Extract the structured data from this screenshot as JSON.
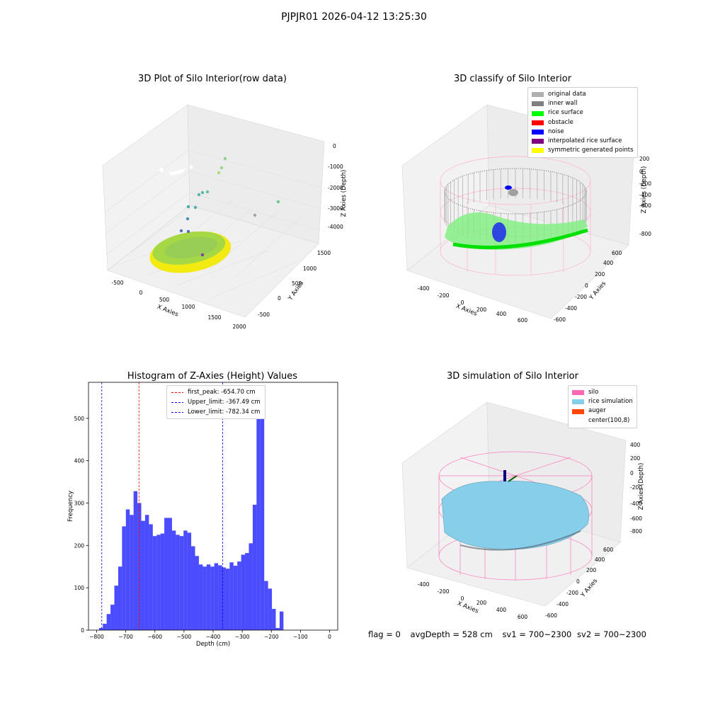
{
  "suptitle": "PJPJR01 2026-04-12 13:25:30",
  "panels": {
    "raw": {
      "title": "3D Plot of Silo Interior(row data)",
      "xlabel": "X Axies",
      "ylabel": "Y Axies",
      "zlabel": "Z Axies (Depth)",
      "xticks": [
        "-500",
        "0",
        "500",
        "1000",
        "1500",
        "2000"
      ],
      "yticks": [
        "-500",
        "0",
        "500",
        "1000",
        "1500"
      ],
      "zticks": [
        "0",
        "-1000",
        "-2000",
        "-3000",
        "-4000"
      ]
    },
    "classify": {
      "title": "3D classify of Silo Interior",
      "xlabel": "X Axies",
      "ylabel": "Y Axies",
      "zlabel": "Z Axies (Depth)",
      "xticks": [
        "-400",
        "-200",
        "0",
        "200",
        "400",
        "600"
      ],
      "yticks": [
        "-600",
        "-400",
        "-200",
        "0",
        "200",
        "400",
        "600"
      ],
      "zticks": [
        "200",
        "0",
        "-200",
        "-400",
        "-600",
        "-800"
      ],
      "legend": [
        {
          "label": "original data",
          "color": "#b0b0b0"
        },
        {
          "label": "inner wall",
          "color": "#808080"
        },
        {
          "label": "rice surface",
          "color": "#00ff00"
        },
        {
          "label": "obstacle",
          "color": "#ff0000"
        },
        {
          "label": "noise",
          "color": "#0000ff"
        },
        {
          "label": "interpolated rice surface",
          "color": "#800080"
        },
        {
          "label": "symmetric generated points",
          "color": "#ffff00"
        }
      ]
    },
    "simulation": {
      "title": "3D simulation of Silo Interior",
      "xlabel": "X Axies",
      "ylabel": "Y Axies",
      "zlabel": "Z Axies (Depth)",
      "xticks": [
        "-400",
        "-200",
        "0",
        "200",
        "400",
        "600"
      ],
      "yticks": [
        "-600",
        "-400",
        "-200",
        "0",
        "200",
        "400",
        "600"
      ],
      "zticks": [
        "400",
        "200",
        "0",
        "-200",
        "-400",
        "-600",
        "-800"
      ],
      "legend": [
        {
          "label": "silo",
          "color": "#ff69b4"
        },
        {
          "label": "rice simulation",
          "color": "#87ceeb"
        },
        {
          "label": "auger",
          "color": "#ff4500"
        },
        {
          "label": "center(100,8)",
          "color": "#ffffff"
        }
      ]
    }
  },
  "chart_data": {
    "type": "bar",
    "title": "Histogram of Z-Axies (Height) Values",
    "xlabel": "Depth (cm)",
    "ylabel": "Frequency",
    "xlim": [
      -828,
      28
    ],
    "ylim": [
      0,
      585
    ],
    "xticks": [
      -800,
      -700,
      -600,
      -500,
      -400,
      -300,
      -200,
      -100,
      0
    ],
    "yticks": [
      0,
      100,
      200,
      300,
      400,
      500
    ],
    "bin_start": -792,
    "bin_width": 13.2,
    "color": "#0000ff",
    "values": [
      5,
      15,
      38,
      60,
      105,
      150,
      245,
      285,
      272,
      328,
      300,
      258,
      272,
      250,
      222,
      225,
      228,
      265,
      265,
      235,
      225,
      222,
      235,
      230,
      198,
      175,
      155,
      150,
      155,
      150,
      158,
      153,
      148,
      145,
      160,
      152,
      162,
      178,
      182,
      205,
      296,
      556,
      558,
      116,
      98,
      50,
      5,
      44
    ],
    "lines": [
      {
        "label": "first_peak: -654.70 cm",
        "x": -654.7,
        "color": "#ff0000"
      },
      {
        "label": "Upper_limit: -367.49 cm",
        "x": -367.49,
        "color": "#0000ff"
      },
      {
        "label": "Lower_limit: -782.34 cm",
        "x": -782.34,
        "color": "#0000ff"
      }
    ]
  },
  "footer": {
    "flag": "flag = 0",
    "avg_depth": "avgDepth = 528 cm",
    "sv1": "sv1 = 700~2300",
    "sv2": "sv2 = 700~2300"
  }
}
